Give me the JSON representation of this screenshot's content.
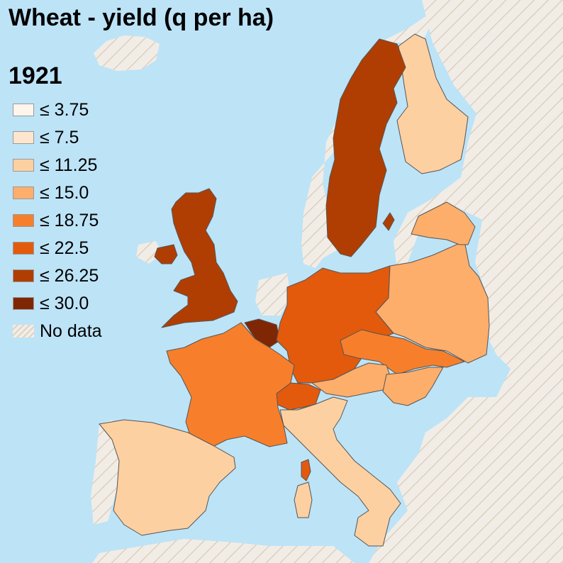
{
  "map": {
    "title": "Wheat - yield (q per ha)",
    "year": "1921",
    "colors": {
      "sea": "#bde3f7",
      "no_data_base": "#f1ede6",
      "no_data_hatch": "#dcd0bf",
      "border": "#555555"
    },
    "legend": [
      {
        "label": "≤ 3.75",
        "color": "#fff5eb"
      },
      {
        "label": "≤ 7.5",
        "color": "#fee6ce"
      },
      {
        "label": "≤ 11.25",
        "color": "#fdd0a2"
      },
      {
        "label": "≤ 15.0",
        "color": "#fdae6b"
      },
      {
        "label": "≤ 18.75",
        "color": "#f77f2b"
      },
      {
        "label": "≤ 22.5",
        "color": "#e35a0d"
      },
      {
        "label": "≤ 26.25",
        "color": "#b03e02"
      },
      {
        "label": "≤ 30.0",
        "color": "#7f2704"
      },
      {
        "label": "No data",
        "color": "hatch"
      }
    ],
    "regions": [
      {
        "name": "Finland",
        "bin": 2
      },
      {
        "name": "Sweden",
        "bin": 6
      },
      {
        "name": "United Kingdom",
        "bin": 6
      },
      {
        "name": "Ireland",
        "bin": 6
      },
      {
        "name": "Belgium",
        "bin": 7
      },
      {
        "name": "Germany",
        "bin": 5
      },
      {
        "name": "Poland",
        "bin": 3
      },
      {
        "name": "Czechoslovakia",
        "bin": 4
      },
      {
        "name": "Austria",
        "bin": 3
      },
      {
        "name": "Hungary",
        "bin": 3
      },
      {
        "name": "Switzerland",
        "bin": 5
      },
      {
        "name": "France",
        "bin": 4
      },
      {
        "name": "Italy",
        "bin": 2
      },
      {
        "name": "Spain",
        "bin": 2
      },
      {
        "name": "Latvia",
        "bin": 3
      },
      {
        "name": "Corsica",
        "bin": 5
      },
      {
        "name": "Gotland",
        "bin": 6
      }
    ]
  }
}
